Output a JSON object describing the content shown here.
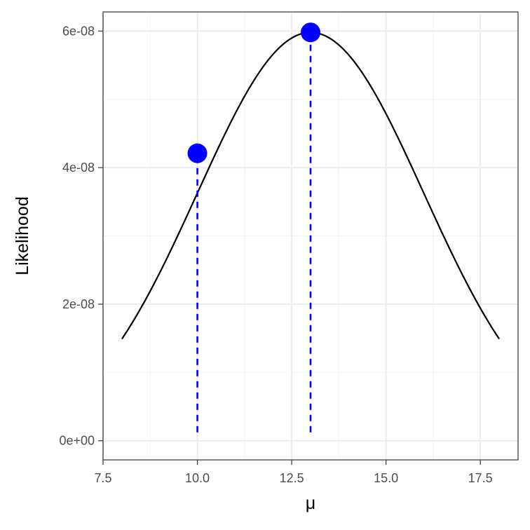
{
  "chart_data": {
    "type": "line",
    "xlabel": "μ",
    "ylabel": "Likelihood",
    "xlim": [
      7.5,
      18.5
    ],
    "ylim": [
      -2.8e-09,
      6.28e-08
    ],
    "x_ticks": [
      7.5,
      10.0,
      12.5,
      15.0,
      17.5
    ],
    "x_tick_labels": [
      "7.5",
      "10.0",
      "12.5",
      "15.0",
      "17.5"
    ],
    "y_ticks": [
      0,
      2e-08,
      4e-08,
      6e-08
    ],
    "y_tick_labels": [
      "0e+00",
      "2e-08",
      "4e-08",
      "6e-08"
    ],
    "grid": true,
    "curve": {
      "x_range": [
        8,
        18
      ],
      "peak_x": 13,
      "peak_y": 5.98e-08,
      "sd": 3.0
    },
    "points": [
      {
        "x": 10,
        "y": 4.21e-08
      },
      {
        "x": 13,
        "y": 5.98e-08
      }
    ],
    "colors": {
      "curve": "#000000",
      "points": "#0000ff",
      "dropline": "#0000ff",
      "grid_major": "#ebebeb",
      "grid_minor": "#f4f4f4",
      "panel_border": "#333333"
    }
  }
}
